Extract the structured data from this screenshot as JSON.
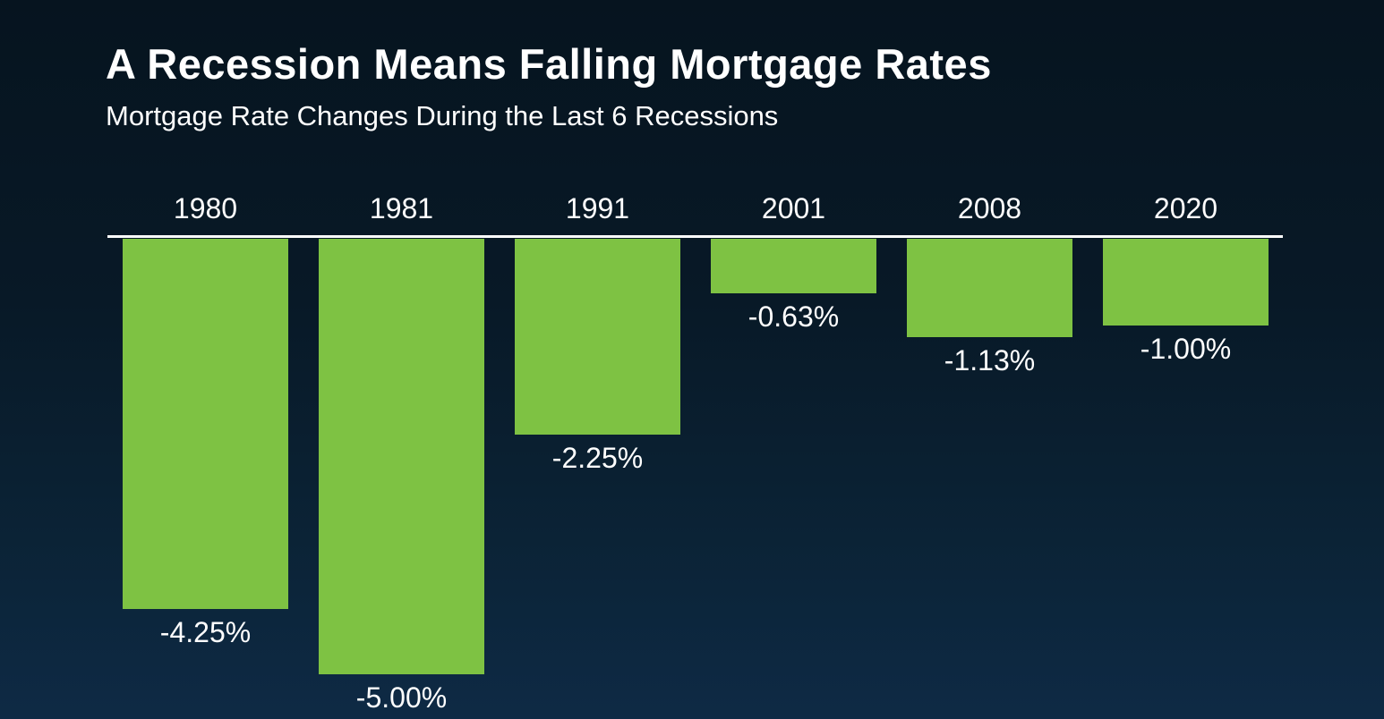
{
  "chart": {
    "title": "A Recession Means Falling Mortgage Rates",
    "subtitle": "Mortgage Rate Changes During the Last 6 Recessions"
  },
  "chart_data": {
    "type": "bar",
    "title": "A Recession Means Falling Mortgage Rates",
    "subtitle": "Mortgage Rate Changes During the Last 6 Recessions",
    "categories": [
      "1980",
      "1981",
      "1991",
      "2001",
      "2008",
      "2020"
    ],
    "values": [
      -4.25,
      -5.0,
      -2.25,
      -0.63,
      -1.13,
      -1.0
    ],
    "value_labels": [
      "-4.25%",
      "-5.00%",
      "-2.25%",
      "-0.63%",
      "-1.13%",
      "-1.00%"
    ],
    "xlabel": "",
    "ylabel": "",
    "ylim": [
      -5.25,
      0
    ],
    "grid": false,
    "legend": false,
    "bar_color": "#7EC243",
    "baseline_color": "#FFFFFF",
    "text_color": "#FFFFFF",
    "background_top_color": "#06141F",
    "background_bottom_color": "#0E2A45",
    "layout_hint": "columns hang downward from a zero baseline; category year above baseline, value label below each bar"
  }
}
